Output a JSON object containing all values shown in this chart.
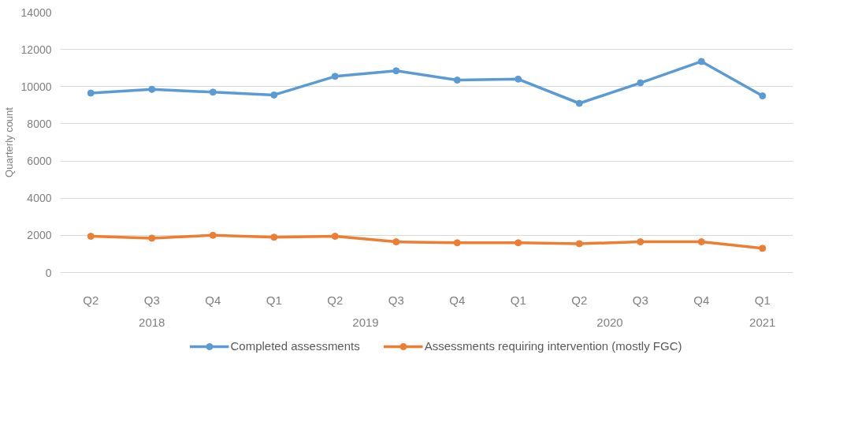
{
  "chart_data": {
    "type": "line",
    "ylabel": "Quarterly count",
    "categories": [
      "Q2",
      "Q3",
      "Q4",
      "Q1",
      "Q2",
      "Q3",
      "Q4",
      "Q1",
      "Q2",
      "Q3",
      "Q4",
      "Q1"
    ],
    "series": [
      {
        "name": "Completed assessments",
        "color": "#5b9bd5",
        "values": [
          9650,
          9850,
          9700,
          9550,
          10550,
          10850,
          10350,
          10400,
          9100,
          10200,
          11350,
          9500
        ]
      },
      {
        "name": "Assessments requiring intervention (mostly FGC)",
        "color": "#ed7d31",
        "values": [
          1950,
          1850,
          2000,
          1900,
          1950,
          1650,
          1600,
          1600,
          1550,
          1650,
          1650,
          1300
        ]
      }
    ],
    "annotations": [
      "2018",
      "2019",
      "2020",
      "2021"
    ],
    "ylim": [
      0,
      14000
    ],
    "yticks": [
      0,
      2000,
      4000,
      6000,
      8000,
      10000,
      12000,
      14000
    ],
    "grid": "y",
    "legend": "bottom",
    "marker": "circle",
    "line_style": "solid"
  }
}
